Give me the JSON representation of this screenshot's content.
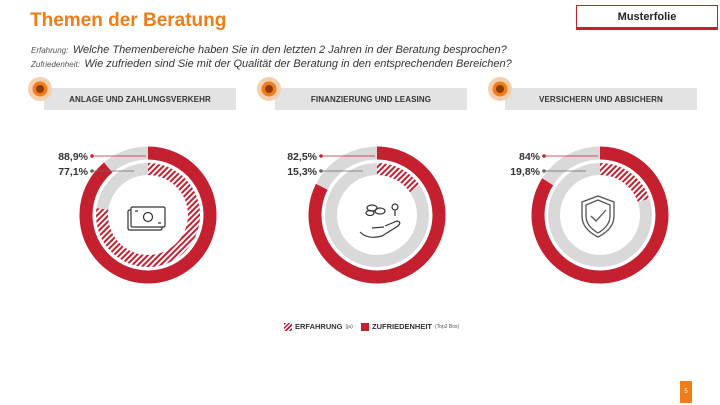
{
  "header": {
    "title": "Themen der Beratung",
    "badge": "Musterfolie",
    "q1_label": "Erfahrung:",
    "q1_text": "Welche Themenbereiche haben Sie in den letzten 2 Jahren in der Beratung besprochen?",
    "q2_label": "Zufriedenheit:",
    "q2_text": "Wie zufrieden sind Sie mit der Qualität der Beratung in den entsprechenden Bereichen?"
  },
  "colors": {
    "accent": "#ee7d1a",
    "red": "#c4202f",
    "grey": "#d9d9d9",
    "tag_bg": "#e3e3e3"
  },
  "chart_data": [
    {
      "type": "donut",
      "title": "ANLAGE UND ZAHLUNGSVERKEHR",
      "icon": "money-bill-icon",
      "series": [
        {
          "name": "ERFAHRUNG",
          "value": 77.1,
          "label": "77,1%"
        },
        {
          "name": "ZUFRIEDENHEIT",
          "value": 88.9,
          "label": "88,9%"
        }
      ]
    },
    {
      "type": "donut",
      "title": "FINANZIERUNG UND LEASING",
      "icon": "hand-coins-icon",
      "series": [
        {
          "name": "ERFAHRUNG",
          "value": 15.3,
          "label": "15,3%"
        },
        {
          "name": "ZUFRIEDENHEIT",
          "value": 82.5,
          "label": "82,5%"
        }
      ]
    },
    {
      "type": "donut",
      "title": "VERSICHERN UND ABSICHERN",
      "icon": "shield-check-icon",
      "series": [
        {
          "name": "ERFAHRUNG",
          "value": 19.8,
          "label": "19,8%"
        },
        {
          "name": "ZUFRIEDENHEIT",
          "value": 84,
          "label": "84%"
        }
      ]
    }
  ],
  "legend": {
    "experience": "ERFAHRUNG",
    "experience_sub": "(ja)",
    "satisfaction": "ZUFRIEDENHEIT",
    "satisfaction_sub": "(Top2 Box)"
  },
  "footer": {
    "page": "5"
  }
}
